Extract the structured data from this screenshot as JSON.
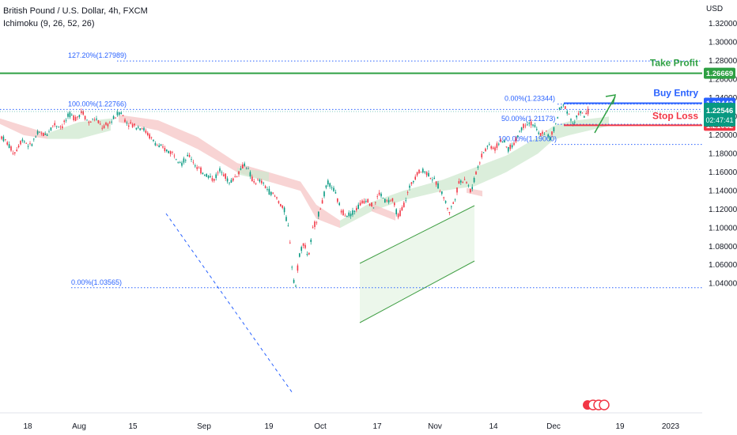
{
  "header": {
    "symbol_line": "British Pound / U.S. Dollar, 4h, FXCM",
    "indicator_line": "Ichimoku (9, 26, 52, 26)",
    "currency": "USD"
  },
  "chart_data": {
    "type": "candlestick",
    "title": "British Pound / U.S. Dollar, 4h, FXCM",
    "y_ticks": [
      "1.32000",
      "1.30000",
      "1.28000",
      "1.26000",
      "1.24000",
      "1.22000",
      "1.20000",
      "1.18000",
      "1.16000",
      "1.14000",
      "1.12000",
      "1.10000",
      "1.08000",
      "1.06000",
      "1.04000"
    ],
    "y_tick_values": [
      1.32,
      1.3,
      1.28,
      1.26,
      1.24,
      1.22,
      1.2,
      1.18,
      1.16,
      1.14,
      1.12,
      1.1,
      1.08,
      1.06,
      1.04
    ],
    "ylim": [
      1.026,
      1.334
    ],
    "x_tick_labels": [
      "18",
      "Aug",
      "15",
      "Sep",
      "19",
      "Oct",
      "17",
      "Nov",
      "14",
      "Dec",
      "19",
      "2023"
    ],
    "fib_levels": [
      {
        "label": "127.20%(1.27989)",
        "value": 1.27989
      },
      {
        "label": "100.00%(1.22766)",
        "value": 1.22766
      },
      {
        "label": "0.00%(1.03565)",
        "value": 1.03565
      },
      {
        "label": "0.00%(1.23344)",
        "value": 1.23344
      },
      {
        "label": "50.00%(1.21173)",
        "value": 1.21173
      },
      {
        "label": "100.00%(1.19000)",
        "value": 1.19
      }
    ],
    "annotations": {
      "take_profit": {
        "label": "Take Profit",
        "value": 1.26669,
        "price_tag": "1.26669",
        "color": "#2ea043"
      },
      "buy_entry": {
        "label": "Buy Entry",
        "value": 1.23442,
        "price_tag": "1.23442",
        "color": "#2962ff"
      },
      "stop_loss": {
        "label": "Stop Loss",
        "value": 1.21062,
        "price_tag": "1.21062",
        "color": "#f23645"
      },
      "current_price": {
        "price_tag": "1.22546",
        "countdown": "02:47:41",
        "value": 1.22546,
        "color": "#089981"
      }
    },
    "price_path": [
      [
        0,
        1.2
      ],
      [
        8,
        1.193
      ],
      [
        18,
        1.18
      ],
      [
        28,
        1.196
      ],
      [
        38,
        1.188
      ],
      [
        48,
        1.202
      ],
      [
        58,
        1.2
      ],
      [
        68,
        1.212
      ],
      [
        78,
        1.209
      ],
      [
        88,
        1.222
      ],
      [
        96,
        1.218
      ],
      [
        104,
        1.226
      ],
      [
        112,
        1.213
      ],
      [
        120,
        1.218
      ],
      [
        130,
        1.208
      ],
      [
        140,
        1.214
      ],
      [
        148,
        1.222
      ],
      [
        152,
        1.226
      ],
      [
        160,
        1.214
      ],
      [
        170,
        1.21
      ],
      [
        180,
        1.208
      ],
      [
        190,
        1.198
      ],
      [
        200,
        1.188
      ],
      [
        210,
        1.184
      ],
      [
        220,
        1.18
      ],
      [
        230,
        1.17
      ],
      [
        240,
        1.178
      ],
      [
        250,
        1.164
      ],
      [
        260,
        1.158
      ],
      [
        270,
        1.152
      ],
      [
        280,
        1.164
      ],
      [
        290,
        1.148
      ],
      [
        300,
        1.158
      ],
      [
        310,
        1.17
      ],
      [
        320,
        1.15
      ],
      [
        330,
        1.15
      ],
      [
        340,
        1.14
      ],
      [
        350,
        1.132
      ],
      [
        360,
        1.118
      ],
      [
        366,
        1.095
      ],
      [
        370,
        1.05
      ],
      [
        374,
        1.037
      ],
      [
        378,
        1.07
      ],
      [
        384,
        1.085
      ],
      [
        390,
        1.068
      ],
      [
        396,
        1.1
      ],
      [
        402,
        1.112
      ],
      [
        408,
        1.13
      ],
      [
        414,
        1.148
      ],
      [
        420,
        1.145
      ],
      [
        426,
        1.132
      ],
      [
        432,
        1.118
      ],
      [
        440,
        1.114
      ],
      [
        448,
        1.118
      ],
      [
        456,
        1.126
      ],
      [
        464,
        1.132
      ],
      [
        472,
        1.122
      ],
      [
        480,
        1.138
      ],
      [
        488,
        1.128
      ],
      [
        496,
        1.13
      ],
      [
        504,
        1.112
      ],
      [
        512,
        1.128
      ],
      [
        520,
        1.148
      ],
      [
        528,
        1.16
      ],
      [
        536,
        1.162
      ],
      [
        544,
        1.156
      ],
      [
        552,
        1.148
      ],
      [
        560,
        1.136
      ],
      [
        568,
        1.117
      ],
      [
        574,
        1.128
      ],
      [
        580,
        1.148
      ],
      [
        588,
        1.154
      ],
      [
        596,
        1.138
      ],
      [
        602,
        1.16
      ],
      [
        610,
        1.18
      ],
      [
        618,
        1.19
      ],
      [
        626,
        1.185
      ],
      [
        634,
        1.196
      ],
      [
        642,
        1.185
      ],
      [
        650,
        1.19
      ],
      [
        658,
        1.206
      ],
      [
        666,
        1.214
      ],
      [
        674,
        1.212
      ],
      [
        682,
        1.2
      ],
      [
        690,
        1.204
      ],
      [
        696,
        1.196
      ],
      [
        702,
        1.21
      ],
      [
        708,
        1.228
      ],
      [
        714,
        1.232
      ],
      [
        720,
        1.222
      ],
      [
        726,
        1.21
      ],
      [
        732,
        1.226
      ],
      [
        738,
        1.22
      ],
      [
        744,
        1.226
      ]
    ]
  }
}
